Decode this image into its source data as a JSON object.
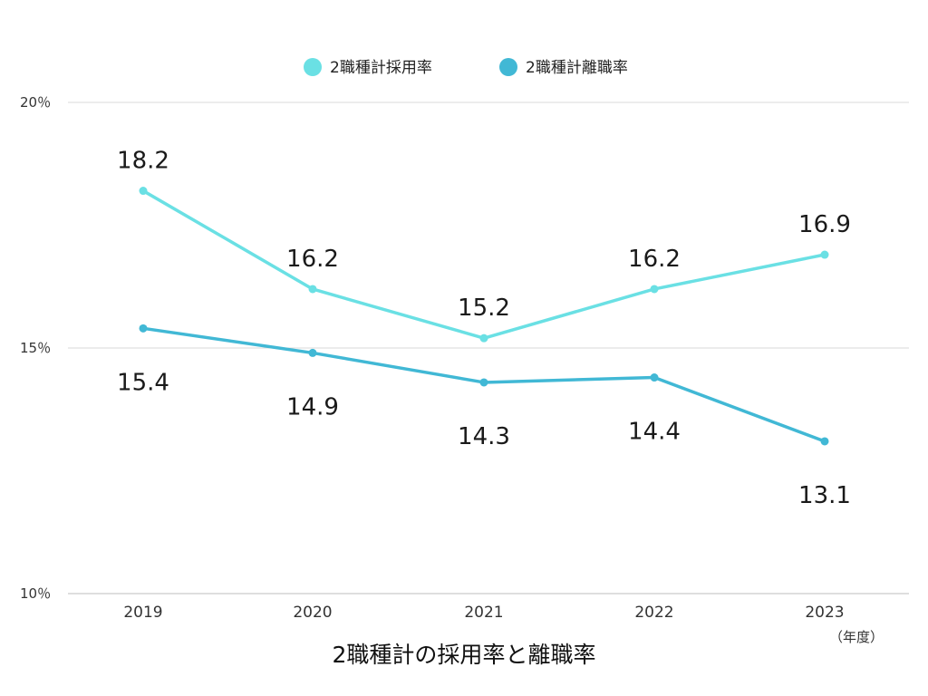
{
  "chart_data": {
    "type": "line",
    "title": "2職種計の採用率と離職率",
    "categories": [
      "2019",
      "2020",
      "2021",
      "2022",
      "2023"
    ],
    "x_unit_note": "（年度）",
    "y_tick_labels": [
      "20％",
      "15％",
      "10％"
    ],
    "y_ticks": [
      20,
      15,
      10
    ],
    "ylim": [
      10,
      20
    ],
    "grid": true,
    "legend_position": "top-center",
    "series": [
      {
        "name": "2職種計採用率",
        "color": "#6ae0e4",
        "values": [
          18.2,
          16.2,
          15.2,
          16.2,
          16.9
        ],
        "labels": [
          "18.2",
          "16.2",
          "15.2",
          "16.2",
          "16.9"
        ],
        "label_position": "above"
      },
      {
        "name": "2職種計離職率",
        "color": "#41b8d5",
        "values": [
          15.4,
          14.9,
          14.3,
          14.4,
          13.1
        ],
        "labels": [
          "15.4",
          "14.9",
          "14.3",
          "14.4",
          "13.1"
        ],
        "label_position": "below"
      }
    ]
  }
}
